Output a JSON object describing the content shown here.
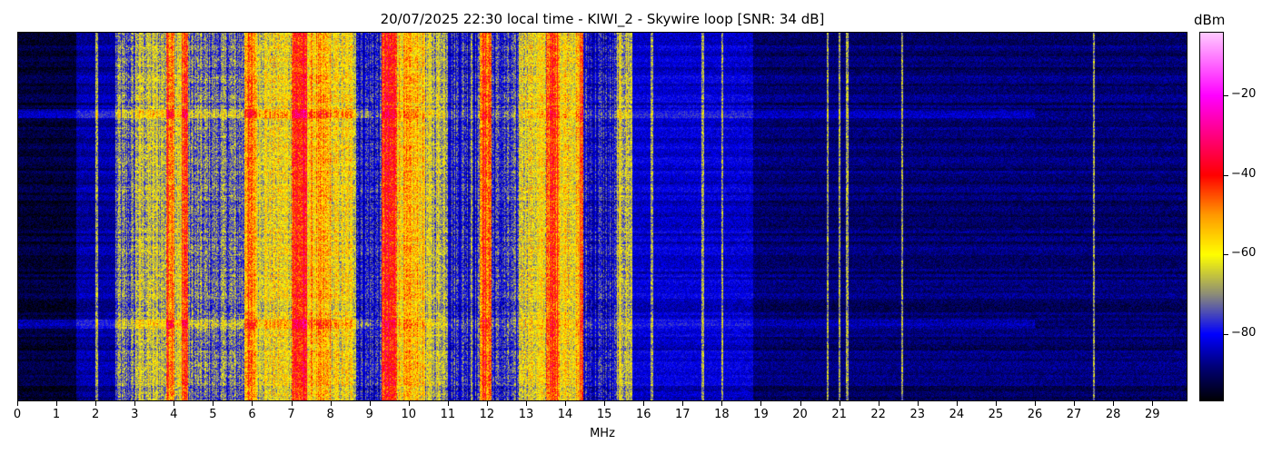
{
  "chart_data": {
    "type": "heatmap",
    "title": "20/07/2025 22:30 local time - KIWI_2 - Skywire loop [SNR: 34 dB]",
    "xlabel": "MHz",
    "ylabel": "",
    "xlim": [
      0,
      29.9
    ],
    "x_ticks": [
      "0",
      "1",
      "2",
      "3",
      "4",
      "5",
      "6",
      "7",
      "8",
      "9",
      "10",
      "11",
      "12",
      "13",
      "14",
      "15",
      "16",
      "17",
      "18",
      "19",
      "20",
      "21",
      "22",
      "23",
      "24",
      "25",
      "26",
      "27",
      "28",
      "29"
    ],
    "colorbar": {
      "label": "dBm",
      "range": [
        -97,
        -4
      ],
      "ticks": [
        -20,
        -40,
        -60,
        -80
      ],
      "tick_labels": [
        "−20",
        "−40",
        "−60",
        "−80"
      ],
      "colormap": [
        {
          "value": -97,
          "color": "#000000"
        },
        {
          "value": -88,
          "color": "#00007a"
        },
        {
          "value": -80,
          "color": "#0000ff"
        },
        {
          "value": -70,
          "color": "#8c8c78"
        },
        {
          "value": -60,
          "color": "#ffff00"
        },
        {
          "value": -50,
          "color": "#ff9900"
        },
        {
          "value": -40,
          "color": "#ff0000"
        },
        {
          "value": -20,
          "color": "#ff00ff"
        },
        {
          "value": -4,
          "color": "#ffccff"
        }
      ]
    },
    "frequency_bands_dBm": [
      [
        0,
        1.5,
        -93
      ],
      [
        1.5,
        2.5,
        -86
      ],
      [
        2.5,
        3.0,
        -74
      ],
      [
        3.0,
        3.8,
        -66
      ],
      [
        3.8,
        4.0,
        -45
      ],
      [
        4.0,
        4.2,
        -64
      ],
      [
        4.2,
        4.35,
        -43
      ],
      [
        4.35,
        5.8,
        -73
      ],
      [
        5.8,
        6.1,
        -50
      ],
      [
        6.1,
        7.0,
        -61
      ],
      [
        7.0,
        7.4,
        -42
      ],
      [
        7.4,
        8.0,
        -55
      ],
      [
        8.0,
        8.65,
        -61
      ],
      [
        8.65,
        9.3,
        -79
      ],
      [
        9.3,
        9.7,
        -42
      ],
      [
        9.7,
        10.4,
        -56
      ],
      [
        10.4,
        11.0,
        -66
      ],
      [
        11.0,
        11.8,
        -78
      ],
      [
        11.8,
        12.1,
        -46
      ],
      [
        12.1,
        12.8,
        -78
      ],
      [
        12.8,
        13.5,
        -61
      ],
      [
        13.5,
        13.85,
        -45
      ],
      [
        13.85,
        14.35,
        -58
      ],
      [
        14.35,
        14.45,
        -45
      ],
      [
        14.45,
        15.3,
        -81
      ],
      [
        15.3,
        15.7,
        -66
      ],
      [
        15.7,
        18.8,
        -83
      ],
      [
        18.8,
        29.9,
        -89
      ]
    ],
    "narrow_lines_MHz": [
      2.02,
      2.6,
      10.8,
      11.6,
      12.9,
      15.45,
      15.65,
      16.2,
      17.5,
      18.0,
      20.7,
      21.0,
      21.2,
      22.6,
      27.5
    ],
    "horizontal_bursts_fraction_from_top": [
      0.22,
      0.79
    ]
  }
}
